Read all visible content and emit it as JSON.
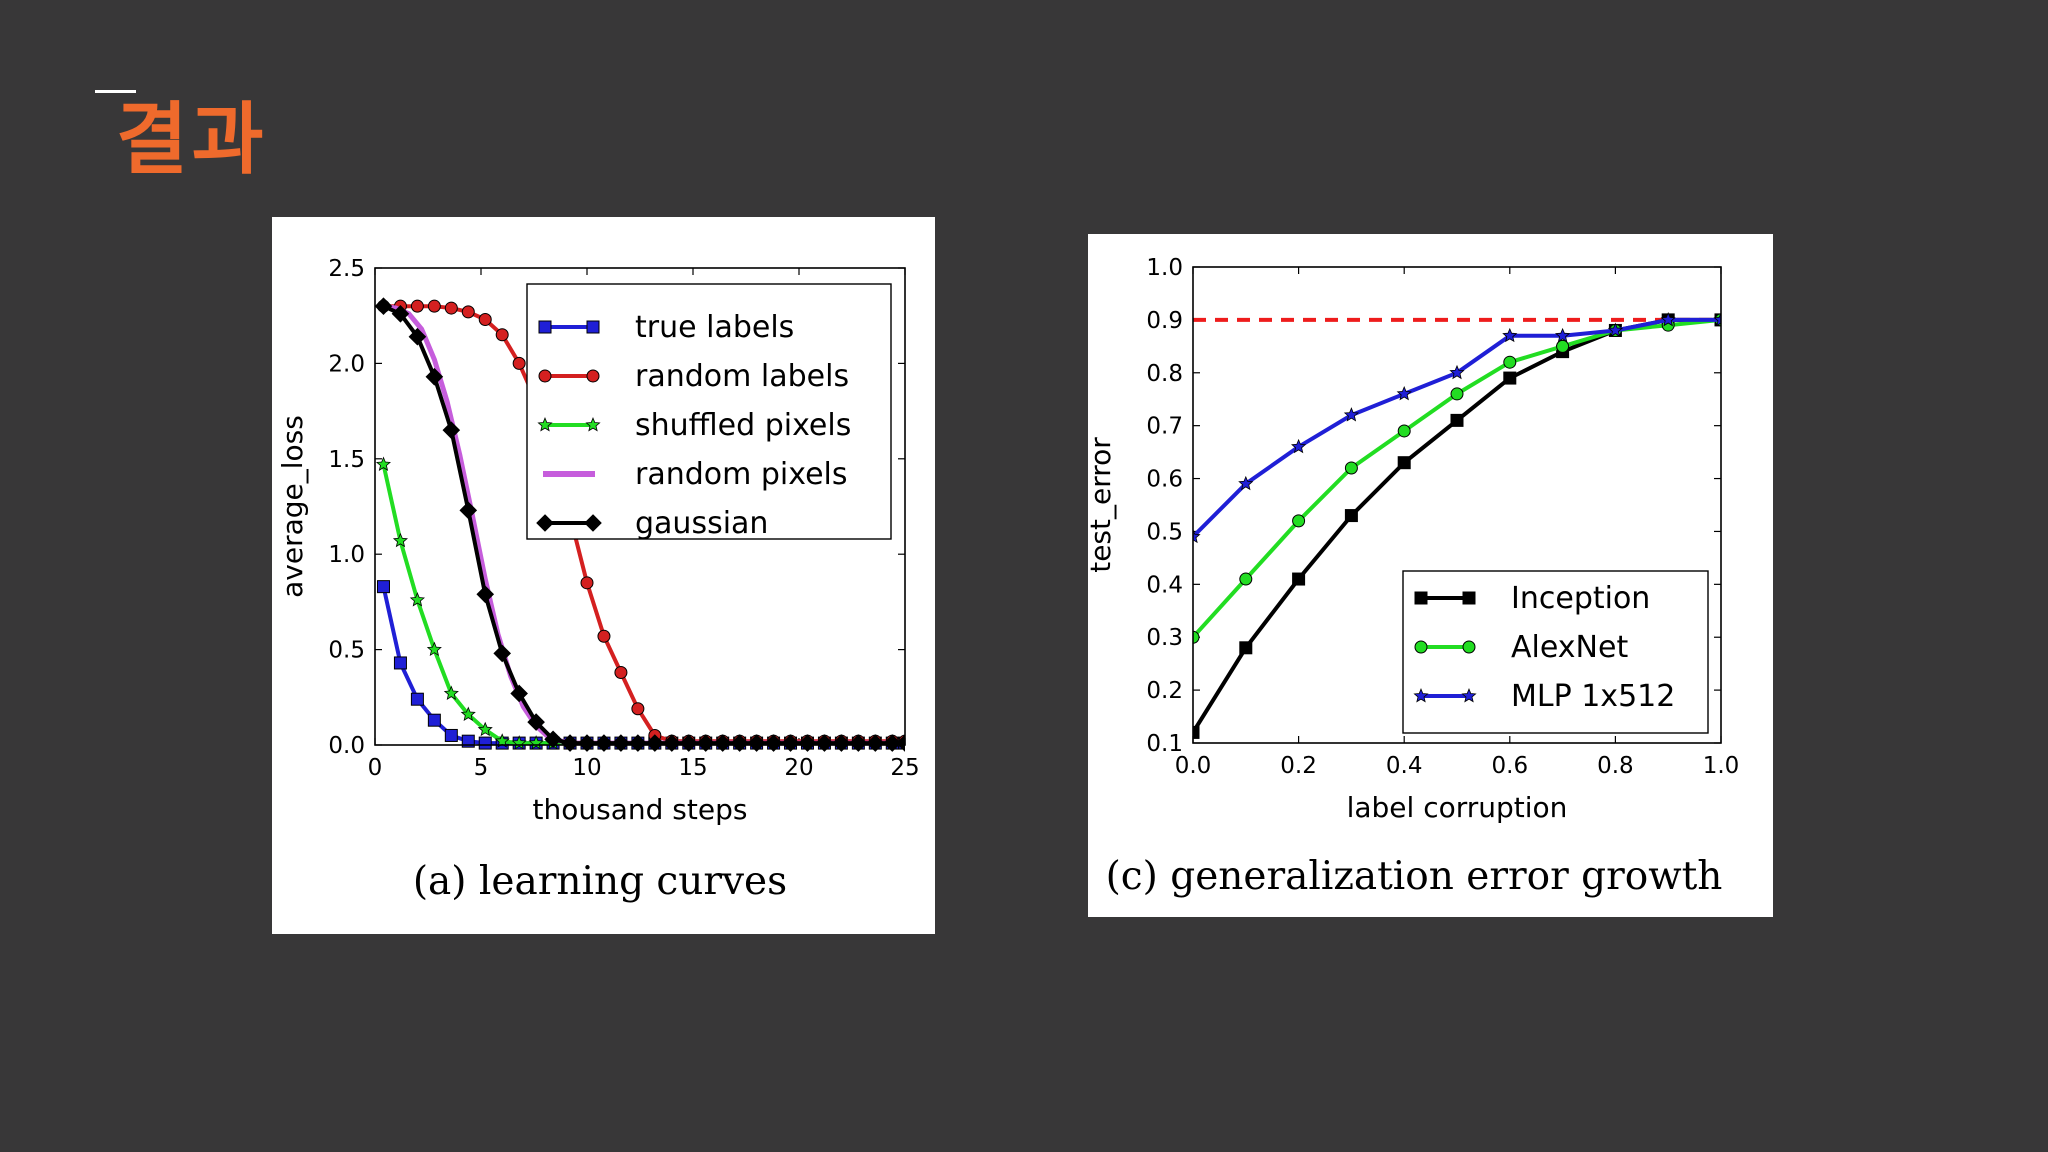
{
  "slide": {
    "title": "결과",
    "title_color": "#ef6a2c"
  },
  "chart_data": [
    {
      "type": "line",
      "title": "",
      "caption": "(a) learning curves",
      "xlabel": "thousand steps",
      "ylabel": "average_loss",
      "xlim": [
        0,
        25
      ],
      "ylim": [
        0,
        2.5
      ],
      "xticks": [
        0,
        5,
        10,
        15,
        20,
        25
      ],
      "yticks": [
        0.0,
        0.5,
        1.0,
        1.5,
        2.0,
        2.5
      ],
      "xtick_labels": [
        "0",
        "5",
        "10",
        "15",
        "20",
        "25"
      ],
      "ytick_labels": [
        "0.0",
        "0.5",
        "1.0",
        "1.5",
        "2.0",
        "2.5"
      ],
      "grid": false,
      "legend_position": "top-right",
      "series": [
        {
          "name": "true labels",
          "color": "#1f1fd6",
          "marker": "square",
          "x": [
            0.4,
            1.2,
            2.0,
            2.8,
            3.6,
            4.4,
            5.2,
            6.0,
            6.8,
            7.6,
            8.4,
            9.2,
            10.0,
            10.8,
            11.6,
            12.4,
            13.2,
            14.0,
            14.8,
            15.6,
            16.4,
            17.2,
            18.0,
            18.8,
            19.6,
            20.4,
            21.2,
            22.0,
            22.8,
            23.6,
            24.4,
            25.0
          ],
          "y": [
            0.83,
            0.43,
            0.24,
            0.13,
            0.05,
            0.02,
            0.01,
            0.01,
            0.01,
            0.01,
            0.01,
            0.01,
            0.01,
            0.01,
            0.01,
            0.01,
            0.01,
            0.01,
            0.01,
            0.01,
            0.01,
            0.01,
            0.01,
            0.01,
            0.01,
            0.01,
            0.01,
            0.01,
            0.01,
            0.01,
            0.01,
            0.01
          ]
        },
        {
          "name": "random labels",
          "color": "#d42020",
          "marker": "circle",
          "x": [
            0.4,
            1.2,
            2.0,
            2.8,
            3.6,
            4.4,
            5.2,
            6.0,
            6.8,
            7.6,
            8.4,
            9.2,
            10.0,
            10.8,
            11.6,
            12.4,
            13.2,
            14.0,
            14.8,
            15.6,
            16.4,
            17.2,
            18.0,
            18.8,
            19.6,
            20.4,
            21.2,
            22.0,
            22.8,
            23.6,
            24.4,
            25.0
          ],
          "y": [
            2.3,
            2.3,
            2.3,
            2.3,
            2.29,
            2.27,
            2.23,
            2.15,
            2.0,
            1.8,
            1.5,
            1.2,
            0.85,
            0.57,
            0.38,
            0.19,
            0.05,
            0.02,
            0.02,
            0.02,
            0.02,
            0.02,
            0.02,
            0.02,
            0.02,
            0.02,
            0.02,
            0.02,
            0.02,
            0.02,
            0.02,
            0.02
          ]
        },
        {
          "name": "shuffled pixels",
          "color": "#22dd22",
          "marker": "star",
          "x": [
            0.4,
            1.2,
            2.0,
            2.8,
            3.6,
            4.4,
            5.2,
            6.0,
            6.8,
            7.6,
            8.4,
            9.2,
            10.0,
            10.8,
            11.6,
            12.4,
            13.2,
            14.0,
            14.8,
            15.6,
            16.4,
            17.2,
            18.0,
            18.8,
            19.6,
            20.4,
            21.2,
            22.0,
            22.8,
            23.6,
            24.4,
            25.0
          ],
          "y": [
            1.47,
            1.07,
            0.76,
            0.5,
            0.27,
            0.16,
            0.08,
            0.02,
            0.01,
            0.01,
            0.01,
            0.01,
            0.01,
            0.01,
            0.01,
            0.01,
            0.01,
            0.01,
            0.01,
            0.01,
            0.01,
            0.01,
            0.01,
            0.01,
            0.01,
            0.01,
            0.01,
            0.01,
            0.01,
            0.01,
            0.01,
            0.01
          ]
        },
        {
          "name": "random pixels",
          "color": "#c65ddc",
          "marker": "none",
          "x": [
            0.4,
            1.0,
            1.6,
            2.2,
            2.8,
            3.4,
            4.0,
            4.6,
            5.2,
            5.8,
            6.4,
            7.0,
            7.6,
            8.2,
            8.8,
            9.4,
            10.0,
            12.0,
            15.0,
            20.0,
            25.0
          ],
          "y": [
            2.3,
            2.29,
            2.26,
            2.18,
            2.02,
            1.8,
            1.52,
            1.2,
            0.87,
            0.58,
            0.36,
            0.2,
            0.1,
            0.04,
            0.02,
            0.01,
            0.01,
            0.01,
            0.01,
            0.01,
            0.01
          ]
        },
        {
          "name": "gaussian",
          "color": "#000000",
          "marker": "diamond",
          "x": [
            0.4,
            1.2,
            2.0,
            2.8,
            3.6,
            4.4,
            5.2,
            6.0,
            6.8,
            7.6,
            8.4,
            9.2,
            10.0,
            10.8,
            11.6,
            12.4,
            13.2,
            14.0,
            14.8,
            15.6,
            16.4,
            17.2,
            18.0,
            18.8,
            19.6,
            20.4,
            21.2,
            22.0,
            22.8,
            23.6,
            24.4,
            25.0
          ],
          "y": [
            2.3,
            2.26,
            2.14,
            1.93,
            1.65,
            1.23,
            0.79,
            0.48,
            0.27,
            0.12,
            0.03,
            0.01,
            0.01,
            0.01,
            0.01,
            0.01,
            0.01,
            0.01,
            0.01,
            0.01,
            0.01,
            0.01,
            0.01,
            0.01,
            0.01,
            0.01,
            0.01,
            0.01,
            0.01,
            0.01,
            0.01,
            0.01
          ]
        }
      ]
    },
    {
      "type": "line",
      "title": "",
      "caption": "(c) generalization error growth",
      "xlabel": "label corruption",
      "ylabel": "test_error",
      "xlim": [
        0.0,
        1.0
      ],
      "ylim": [
        0.1,
        1.0
      ],
      "xticks": [
        0.0,
        0.2,
        0.4,
        0.6,
        0.8,
        1.0
      ],
      "yticks": [
        0.1,
        0.2,
        0.3,
        0.4,
        0.5,
        0.6,
        0.7,
        0.8,
        0.9,
        1.0
      ],
      "xtick_labels": [
        "0.0",
        "0.2",
        "0.4",
        "0.6",
        "0.8",
        "1.0"
      ],
      "ytick_labels": [
        "0.1",
        "0.2",
        "0.3",
        "0.4",
        "0.5",
        "0.6",
        "0.7",
        "0.8",
        "0.9",
        "1.0"
      ],
      "grid": false,
      "legend_position": "lower-right",
      "reference_line": {
        "y": 0.9,
        "color": "#ee1c1c",
        "style": "dashed"
      },
      "series": [
        {
          "name": "Inception",
          "color": "#000000",
          "marker": "square",
          "x": [
            0.0,
            0.1,
            0.2,
            0.3,
            0.4,
            0.5,
            0.6,
            0.7,
            0.8,
            0.9,
            1.0
          ],
          "y": [
            0.12,
            0.28,
            0.41,
            0.53,
            0.63,
            0.71,
            0.79,
            0.84,
            0.88,
            0.9,
            0.9
          ]
        },
        {
          "name": "AlexNet",
          "color": "#22dd22",
          "marker": "circle",
          "x": [
            0.0,
            0.1,
            0.2,
            0.3,
            0.4,
            0.5,
            0.6,
            0.7,
            0.8,
            0.9,
            1.0
          ],
          "y": [
            0.3,
            0.41,
            0.52,
            0.62,
            0.69,
            0.76,
            0.82,
            0.85,
            0.88,
            0.89,
            0.9
          ]
        },
        {
          "name": "MLP 1x512",
          "color": "#1f1fd6",
          "marker": "star",
          "x": [
            0.0,
            0.1,
            0.2,
            0.3,
            0.4,
            0.5,
            0.6,
            0.7,
            0.8,
            0.9,
            1.0
          ],
          "y": [
            0.49,
            0.59,
            0.66,
            0.72,
            0.76,
            0.8,
            0.87,
            0.87,
            0.88,
            0.9,
            0.9
          ]
        }
      ]
    }
  ]
}
